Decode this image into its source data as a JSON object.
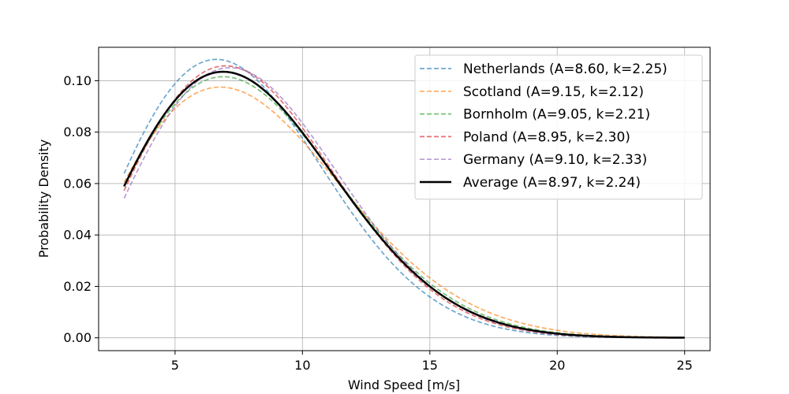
{
  "chart_data": {
    "type": "line",
    "title": "",
    "xlabel": "Wind Speed [m/s]",
    "ylabel": "Probability Density",
    "xlim": [
      2,
      26
    ],
    "ylim": [
      -0.005,
      0.113
    ],
    "x_range": [
      3,
      25
    ],
    "xticks": [
      5,
      10,
      15,
      20,
      25
    ],
    "yticks": [
      0.0,
      0.02,
      0.04,
      0.06,
      0.08,
      0.1
    ],
    "ytick_labels": [
      "0.00",
      "0.02",
      "0.04",
      "0.06",
      "0.08",
      "0.10"
    ],
    "grid": true,
    "legend_position": "top-right",
    "distribution": "weibull",
    "series": [
      {
        "name": "Netherlands (A=8.60, k=2.25)",
        "A": 8.6,
        "k": 2.25,
        "color": "#1f77b4",
        "style": "dashed"
      },
      {
        "name": "Scotland (A=9.15, k=2.12)",
        "A": 9.15,
        "k": 2.12,
        "color": "#ff7f0e",
        "style": "dashed"
      },
      {
        "name": "Bornholm (A=9.05, k=2.21)",
        "A": 9.05,
        "k": 2.21,
        "color": "#2ca02c",
        "style": "dashed"
      },
      {
        "name": "Poland (A=8.95, k=2.30)",
        "A": 8.95,
        "k": 2.3,
        "color": "#d62728",
        "style": "dashed"
      },
      {
        "name": "Germany (A=9.10, k=2.33)",
        "A": 9.1,
        "k": 2.33,
        "color": "#9467bd",
        "style": "dashed"
      },
      {
        "name": "Average (A=8.97, k=2.24)",
        "A": 8.97,
        "k": 2.24,
        "color": "#000000",
        "style": "solid"
      }
    ]
  }
}
